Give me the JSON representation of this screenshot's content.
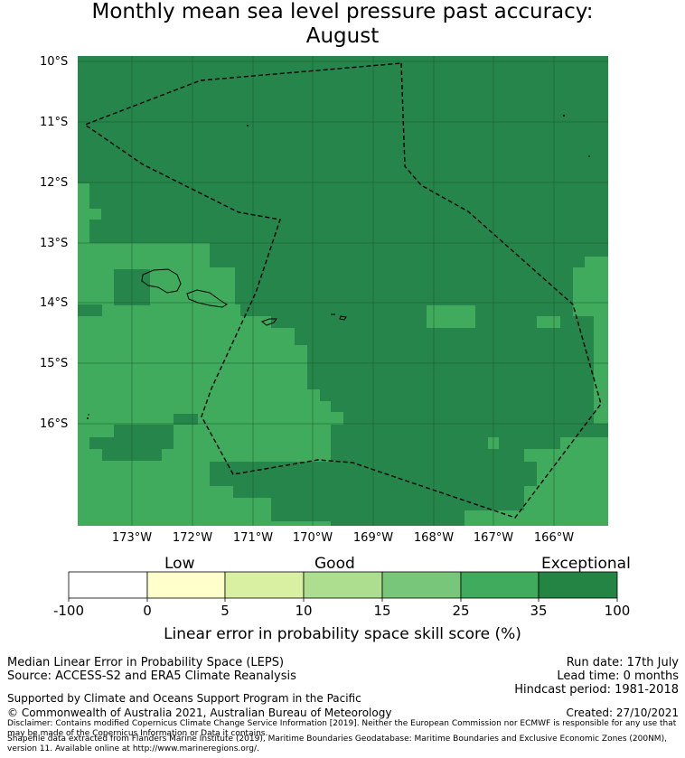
{
  "title": {
    "line1": "Monthly mean sea level pressure past accuracy:",
    "line2": "August"
  },
  "map": {
    "lat_labels": [
      "10°S",
      "11°S",
      "12°S",
      "13°S",
      "14°S",
      "15°S",
      "16°S"
    ],
    "lon_labels": [
      "173°W",
      "172°W",
      "171°W",
      "170°W",
      "169°W",
      "168°W",
      "167°W",
      "166°W"
    ],
    "colors": {
      "exceptional": "#26854a",
      "high": "#41ab5d",
      "grid": "#1a5c30"
    }
  },
  "colorbar": {
    "categories": [
      "Low",
      "Good",
      "Exceptional"
    ],
    "ticks": [
      "-100",
      "0",
      "5",
      "10",
      "15",
      "25",
      "35",
      "100"
    ],
    "colors": [
      "#ffffff",
      "#ffffcc",
      "#d9f0a3",
      "#addd8e",
      "#78c679",
      "#41ab5d",
      "#238443"
    ],
    "label": "Linear error in probability space skill score (%)"
  },
  "footer": {
    "method": "Median Linear Error in Probability Space (LEPS)",
    "source": "Source: ACCESS-S2 and ERA5 Climate Reanalysis",
    "support": "Supported by Climate and Oceans Support Program in the Pacific",
    "copyright": "© Commonwealth of Australia 2021, Australian Bureau of Meteorology",
    "run_date": "Run date: 17th July",
    "lead_time": "Lead time: 0 months",
    "hindcast": "Hindcast period: 1981-2018",
    "created": "Created: 27/10/2021",
    "disclaimer": "Disclaimer: Contains modified Copernicus Climate Change Service Information [2019]. Neither the European Commission nor ECMWF is responsible for any use that may be made of the Copernicus Information or Data it contains.",
    "shapefile": "Shapefile data extracted from Flanders Marine Institute (2019), Maritime Boundaries Geodatabase: Maritime Boundaries and Exclusive Economic Zones (200NM), version 11. Available online at http://www.marineregions.org/."
  }
}
